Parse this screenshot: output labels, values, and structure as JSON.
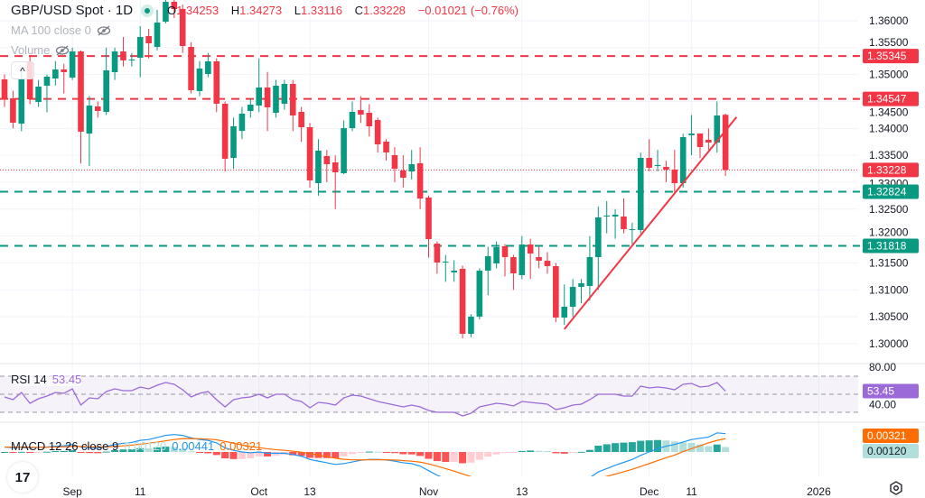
{
  "header": {
    "title": "GBP/USD Spot · 1D",
    "open_key": "O",
    "open": "1.34253",
    "high_key": "H",
    "high": "1.34273",
    "low_key": "L",
    "low": "1.33116",
    "close_key": "C",
    "close": "1.33228",
    "change": "−0.01021 (−0.76%)",
    "ma_label": "MA 100 close 0",
    "volume_label": "Volume",
    "collapse_icon": "^"
  },
  "rsi_legend": {
    "label": "RSI 14",
    "value": "53.45"
  },
  "macd_legend": {
    "label": "MACD 12 26 close 9",
    "hist": "0.00120",
    "macd": "0.00441",
    "signal": "0.00321"
  },
  "logo_text": "17",
  "colors": {
    "up": "#089981",
    "down": "#f23645",
    "rsi": "#9c6ad8",
    "macd": "#2196f3",
    "signal": "#ff6d00",
    "hist_up_strong": "#26a69a",
    "hist_up_weak": "#b2dfdb",
    "hist_down_strong": "#ff5252",
    "hist_down_weak": "#ffcdd2"
  },
  "chart_data": {
    "type": "candlestick",
    "title": "GBP/USD Spot · 1D",
    "ylim": [
      1.2985,
      1.3638
    ],
    "y_ticks": [
      "1.36000",
      "1.35500",
      "1.35000",
      "1.34500",
      "1.34000",
      "1.33500",
      "1.33000",
      "1.32500",
      "1.32000",
      "1.31500",
      "1.31000",
      "1.30500",
      "1.30000"
    ],
    "x_ticks": [
      {
        "label": "Sep",
        "bar": 8
      },
      {
        "label": "11",
        "bar": 16
      },
      {
        "label": "Oct",
        "bar": 30
      },
      {
        "label": "13",
        "bar": 36
      },
      {
        "label": "Nov",
        "bar": 50
      },
      {
        "label": "13",
        "bar": 61
      },
      {
        "label": "Dec",
        "bar": 76
      },
      {
        "label": "11",
        "bar": 81
      },
      {
        "label": "2026",
        "bar": 96
      }
    ],
    "ohlc": [
      [
        1.34911,
        1.35,
        1.344,
        1.34542
      ],
      [
        1.34559,
        1.347,
        1.34,
        1.34106
      ],
      [
        1.34089,
        1.351,
        1.3395,
        1.34911
      ],
      [
        1.35229,
        1.3535,
        1.3445,
        1.34542
      ],
      [
        1.34492,
        1.349,
        1.344,
        1.34777
      ],
      [
        1.34793,
        1.35,
        1.343,
        1.34961
      ],
      [
        1.34927,
        1.3525,
        1.348,
        1.35095
      ],
      [
        1.35095,
        1.352,
        1.3465,
        1.35045
      ],
      [
        1.34944,
        1.355,
        1.349,
        1.3543
      ],
      [
        1.3543,
        1.3545,
        1.3335,
        1.33939
      ],
      [
        1.33905,
        1.346,
        1.333,
        1.34425
      ],
      [
        1.34408,
        1.345,
        1.342,
        1.34324
      ],
      [
        1.34307,
        1.355,
        1.3425,
        1.35078
      ],
      [
        1.35045,
        1.355,
        1.349,
        1.3543
      ],
      [
        1.3543,
        1.357,
        1.3515,
        1.35263
      ],
      [
        1.35263,
        1.354,
        1.3515,
        1.3528
      ],
      [
        1.35313,
        1.359,
        1.3495,
        1.35698
      ],
      [
        1.35715,
        1.3585,
        1.353,
        1.35581
      ],
      [
        1.35514,
        1.362,
        1.3545,
        1.35966
      ],
      [
        1.35983,
        1.365,
        1.3595,
        1.36352
      ],
      [
        1.36352,
        1.365,
        1.3605,
        1.36218
      ],
      [
        1.36218,
        1.363,
        1.354,
        1.35531
      ],
      [
        1.35514,
        1.356,
        1.3465,
        1.34709
      ],
      [
        1.34693,
        1.3525,
        1.346,
        1.35112
      ],
      [
        1.35011,
        1.354,
        1.3495,
        1.35246
      ],
      [
        1.35246,
        1.353,
        1.343,
        1.34458
      ],
      [
        1.34458,
        1.345,
        1.332,
        1.33436
      ],
      [
        1.33452,
        1.342,
        1.3325,
        1.34039
      ],
      [
        1.33955,
        1.344,
        1.338,
        1.34274
      ],
      [
        1.34324,
        1.3455,
        1.342,
        1.34441
      ],
      [
        1.34425,
        1.353,
        1.343,
        1.3476
      ],
      [
        1.3476,
        1.3505,
        1.3395,
        1.34391
      ],
      [
        1.3429,
        1.349,
        1.342,
        1.34793
      ],
      [
        1.34458,
        1.349,
        1.3435,
        1.34827
      ],
      [
        1.34827,
        1.349,
        1.3395,
        1.3424
      ],
      [
        1.34307,
        1.344,
        1.3375,
        1.34022
      ],
      [
        1.34022,
        1.341,
        1.329,
        1.33034
      ],
      [
        1.32983,
        1.338,
        1.3275,
        1.33587
      ],
      [
        1.33486,
        1.336,
        1.33,
        1.33335
      ],
      [
        1.33369,
        1.335,
        1.325,
        1.33184
      ],
      [
        1.33168,
        1.3415,
        1.3315,
        1.34005
      ],
      [
        1.34005,
        1.345,
        1.3395,
        1.34307
      ],
      [
        1.34341,
        1.346,
        1.341,
        1.34257
      ],
      [
        1.3429,
        1.3445,
        1.3385,
        1.34039
      ],
      [
        1.34156,
        1.342,
        1.3355,
        1.33704
      ],
      [
        1.33754,
        1.338,
        1.334,
        1.33553
      ],
      [
        1.33503,
        1.3365,
        1.33,
        1.33251
      ],
      [
        1.33218,
        1.335,
        1.329,
        1.33084
      ],
      [
        1.33201,
        1.336,
        1.3305,
        1.33335
      ],
      [
        1.33352,
        1.3365,
        1.325,
        1.32698
      ],
      [
        1.32715,
        1.3275,
        1.316,
        1.31944
      ],
      [
        1.3186,
        1.319,
        1.313,
        1.31508
      ],
      [
        1.31525,
        1.3165,
        1.3115,
        1.31525
      ],
      [
        1.31324,
        1.3155,
        1.3115,
        1.31358
      ],
      [
        1.31391,
        1.3145,
        1.301,
        1.30184
      ],
      [
        1.30184,
        1.3055,
        1.3012,
        1.30503
      ],
      [
        1.30503,
        1.314,
        1.3045,
        1.31358
      ],
      [
        1.31358,
        1.318,
        1.309,
        1.31626
      ],
      [
        1.31492,
        1.319,
        1.314,
        1.31793
      ],
      [
        1.3181,
        1.3185,
        1.3125,
        1.31609
      ],
      [
        1.31609,
        1.3165,
        1.31,
        1.31307
      ],
      [
        1.31274,
        1.32,
        1.312,
        1.31843
      ],
      [
        1.31843,
        1.3195,
        1.312,
        1.31676
      ],
      [
        1.31609,
        1.318,
        1.314,
        1.31542
      ],
      [
        1.31542,
        1.317,
        1.313,
        1.31441
      ],
      [
        1.31441,
        1.315,
        1.304,
        1.30486
      ],
      [
        1.30486,
        1.311,
        1.3035,
        1.30687
      ],
      [
        1.30687,
        1.312,
        1.305,
        1.31056
      ],
      [
        1.31056,
        1.312,
        1.3075,
        1.31123
      ],
      [
        1.31072,
        1.32,
        1.308,
        1.31609
      ],
      [
        1.31609,
        1.3255,
        1.31,
        1.32346
      ],
      [
        1.32363,
        1.3265,
        1.3205,
        1.3238
      ],
      [
        1.32363,
        1.325,
        1.3195,
        1.32397
      ],
      [
        1.32363,
        1.327,
        1.3205,
        1.32128
      ],
      [
        1.32128,
        1.3225,
        1.3185,
        1.32128
      ],
      [
        1.32112,
        1.3355,
        1.3205,
        1.33452
      ],
      [
        1.33452,
        1.338,
        1.332,
        1.33268
      ],
      [
        1.33302,
        1.336,
        1.332,
        1.3332
      ],
      [
        1.33285,
        1.334,
        1.33,
        1.33235
      ],
      [
        1.33235,
        1.336,
        1.328,
        1.32983
      ],
      [
        1.32983,
        1.339,
        1.329,
        1.33838
      ],
      [
        1.33872,
        1.3425,
        1.335,
        1.33905
      ],
      [
        1.33905,
        1.339,
        1.3345,
        1.33654
      ],
      [
        1.33788,
        1.34,
        1.336,
        1.33737
      ],
      [
        1.33737,
        1.345,
        1.3355,
        1.3424
      ],
      [
        1.34253,
        1.34273,
        1.33116,
        1.33228
      ]
    ],
    "levels": [
      {
        "price": 1.35345,
        "label": "1.35345",
        "kind": "resistance"
      },
      {
        "price": 1.34547,
        "label": "1.34547",
        "kind": "resistance"
      },
      {
        "price": 1.32824,
        "label": "1.32824",
        "kind": "support"
      },
      {
        "price": 1.31818,
        "label": "1.31818",
        "kind": "support"
      }
    ],
    "last_price": {
      "price": 1.33228,
      "label": "1.33228"
    },
    "trendline": {
      "from": {
        "bar": 66,
        "price": 1.3027
      },
      "to": {
        "bar": 86.3,
        "price": 1.3421
      }
    },
    "rsi": {
      "ticks": [
        "80.00",
        "40.00"
      ],
      "bands": [
        70,
        50,
        30
      ],
      "last_label": "53.45",
      "values": [
        47,
        44,
        52,
        40,
        45,
        48,
        52,
        51,
        56,
        38,
        46,
        45,
        53,
        56,
        54,
        54,
        58,
        56,
        60,
        63,
        61,
        55,
        47,
        51,
        53,
        44,
        36,
        44,
        46,
        47,
        50,
        46,
        50,
        50,
        44,
        42,
        35,
        41,
        40,
        38,
        46,
        49,
        48,
        45,
        42,
        40,
        38,
        36,
        38,
        36,
        32,
        30,
        30,
        30,
        26,
        29,
        36,
        38,
        40,
        39,
        37,
        42,
        41,
        40,
        39,
        33,
        35,
        38,
        39,
        44,
        50,
        50,
        50,
        48,
        48,
        59,
        57,
        58,
        57,
        55,
        61,
        62,
        58,
        59,
        63,
        53.45
      ]
    },
    "macd": {
      "signal_label": "0.00321",
      "hist_label": "0.00120",
      "macd": [
        0.0012,
        0.001,
        0.0012,
        0.001,
        0.0011,
        0.0012,
        0.0014,
        0.0015,
        0.0018,
        0.0012,
        0.001,
        0.0009,
        0.0013,
        0.0018,
        0.0021,
        0.0023,
        0.0028,
        0.003,
        0.0035,
        0.004,
        0.0042,
        0.004,
        0.0034,
        0.003,
        0.0028,
        0.0022,
        0.001,
        0.0004,
        0.0,
        -0.0002,
        0.0,
        -0.0003,
        -0.0003,
        -0.0003,
        -0.0006,
        -0.001,
        -0.0018,
        -0.0022,
        -0.0026,
        -0.003,
        -0.0028,
        -0.0024,
        -0.002,
        -0.0018,
        -0.0018,
        -0.0019,
        -0.0022,
        -0.0026,
        -0.0028,
        -0.0034,
        -0.0045,
        -0.0056,
        -0.0064,
        -0.007,
        -0.008,
        -0.0085,
        -0.0083,
        -0.0078,
        -0.0074,
        -0.0071,
        -0.007,
        -0.0066,
        -0.0064,
        -0.0064,
        -0.0064,
        -0.007,
        -0.0072,
        -0.007,
        -0.0068,
        -0.0062,
        -0.0048,
        -0.004,
        -0.0032,
        -0.0025,
        -0.0018,
        -0.0008,
        0.0,
        0.0008,
        0.0014,
        0.0018,
        0.0024,
        0.003,
        0.0033,
        0.0036,
        0.0046,
        0.00441
      ],
      "signal": [
        0.0012,
        0.00116,
        0.00117,
        0.00114,
        0.00113,
        0.00114,
        0.00119,
        0.00125,
        0.00136,
        0.00133,
        0.00126,
        0.00119,
        0.00121,
        0.00133,
        0.00148,
        0.00165,
        0.00188,
        0.0021,
        0.00238,
        0.0027,
        0.003,
        0.0032,
        0.00324,
        0.00319,
        0.00311,
        0.00293,
        0.00254,
        0.00211,
        0.00169,
        0.00131,
        0.00105,
        0.00078,
        0.00056,
        0.00039,
        0.00019,
        -5e-05,
        -0.0004,
        -0.00076,
        -0.00113,
        -0.0015,
        -0.00176,
        -0.00189,
        -0.00191,
        -0.00189,
        -0.00187,
        -0.00188,
        -0.00194,
        -0.00207,
        -0.00222,
        -0.00245,
        -0.00286,
        -0.00341,
        -0.00401,
        -0.00461,
        -0.00529,
        -0.00593,
        -0.0064,
        -0.00668,
        -0.00682,
        -0.00688,
        -0.0069,
        -0.00684,
        -0.00675,
        -0.00668,
        -0.00662,
        -0.0067,
        -0.0068,
        -0.00684,
        -0.00683,
        -0.0067,
        -0.00632,
        -0.00586,
        -0.00533,
        -0.00476,
        -0.00417,
        -0.0035,
        -0.0028,
        -0.00208,
        -0.00138,
        -0.00074,
        0.0001,
        0.0008,
        0.0015,
        0.0022,
        0.0028,
        0.00321
      ]
    }
  }
}
